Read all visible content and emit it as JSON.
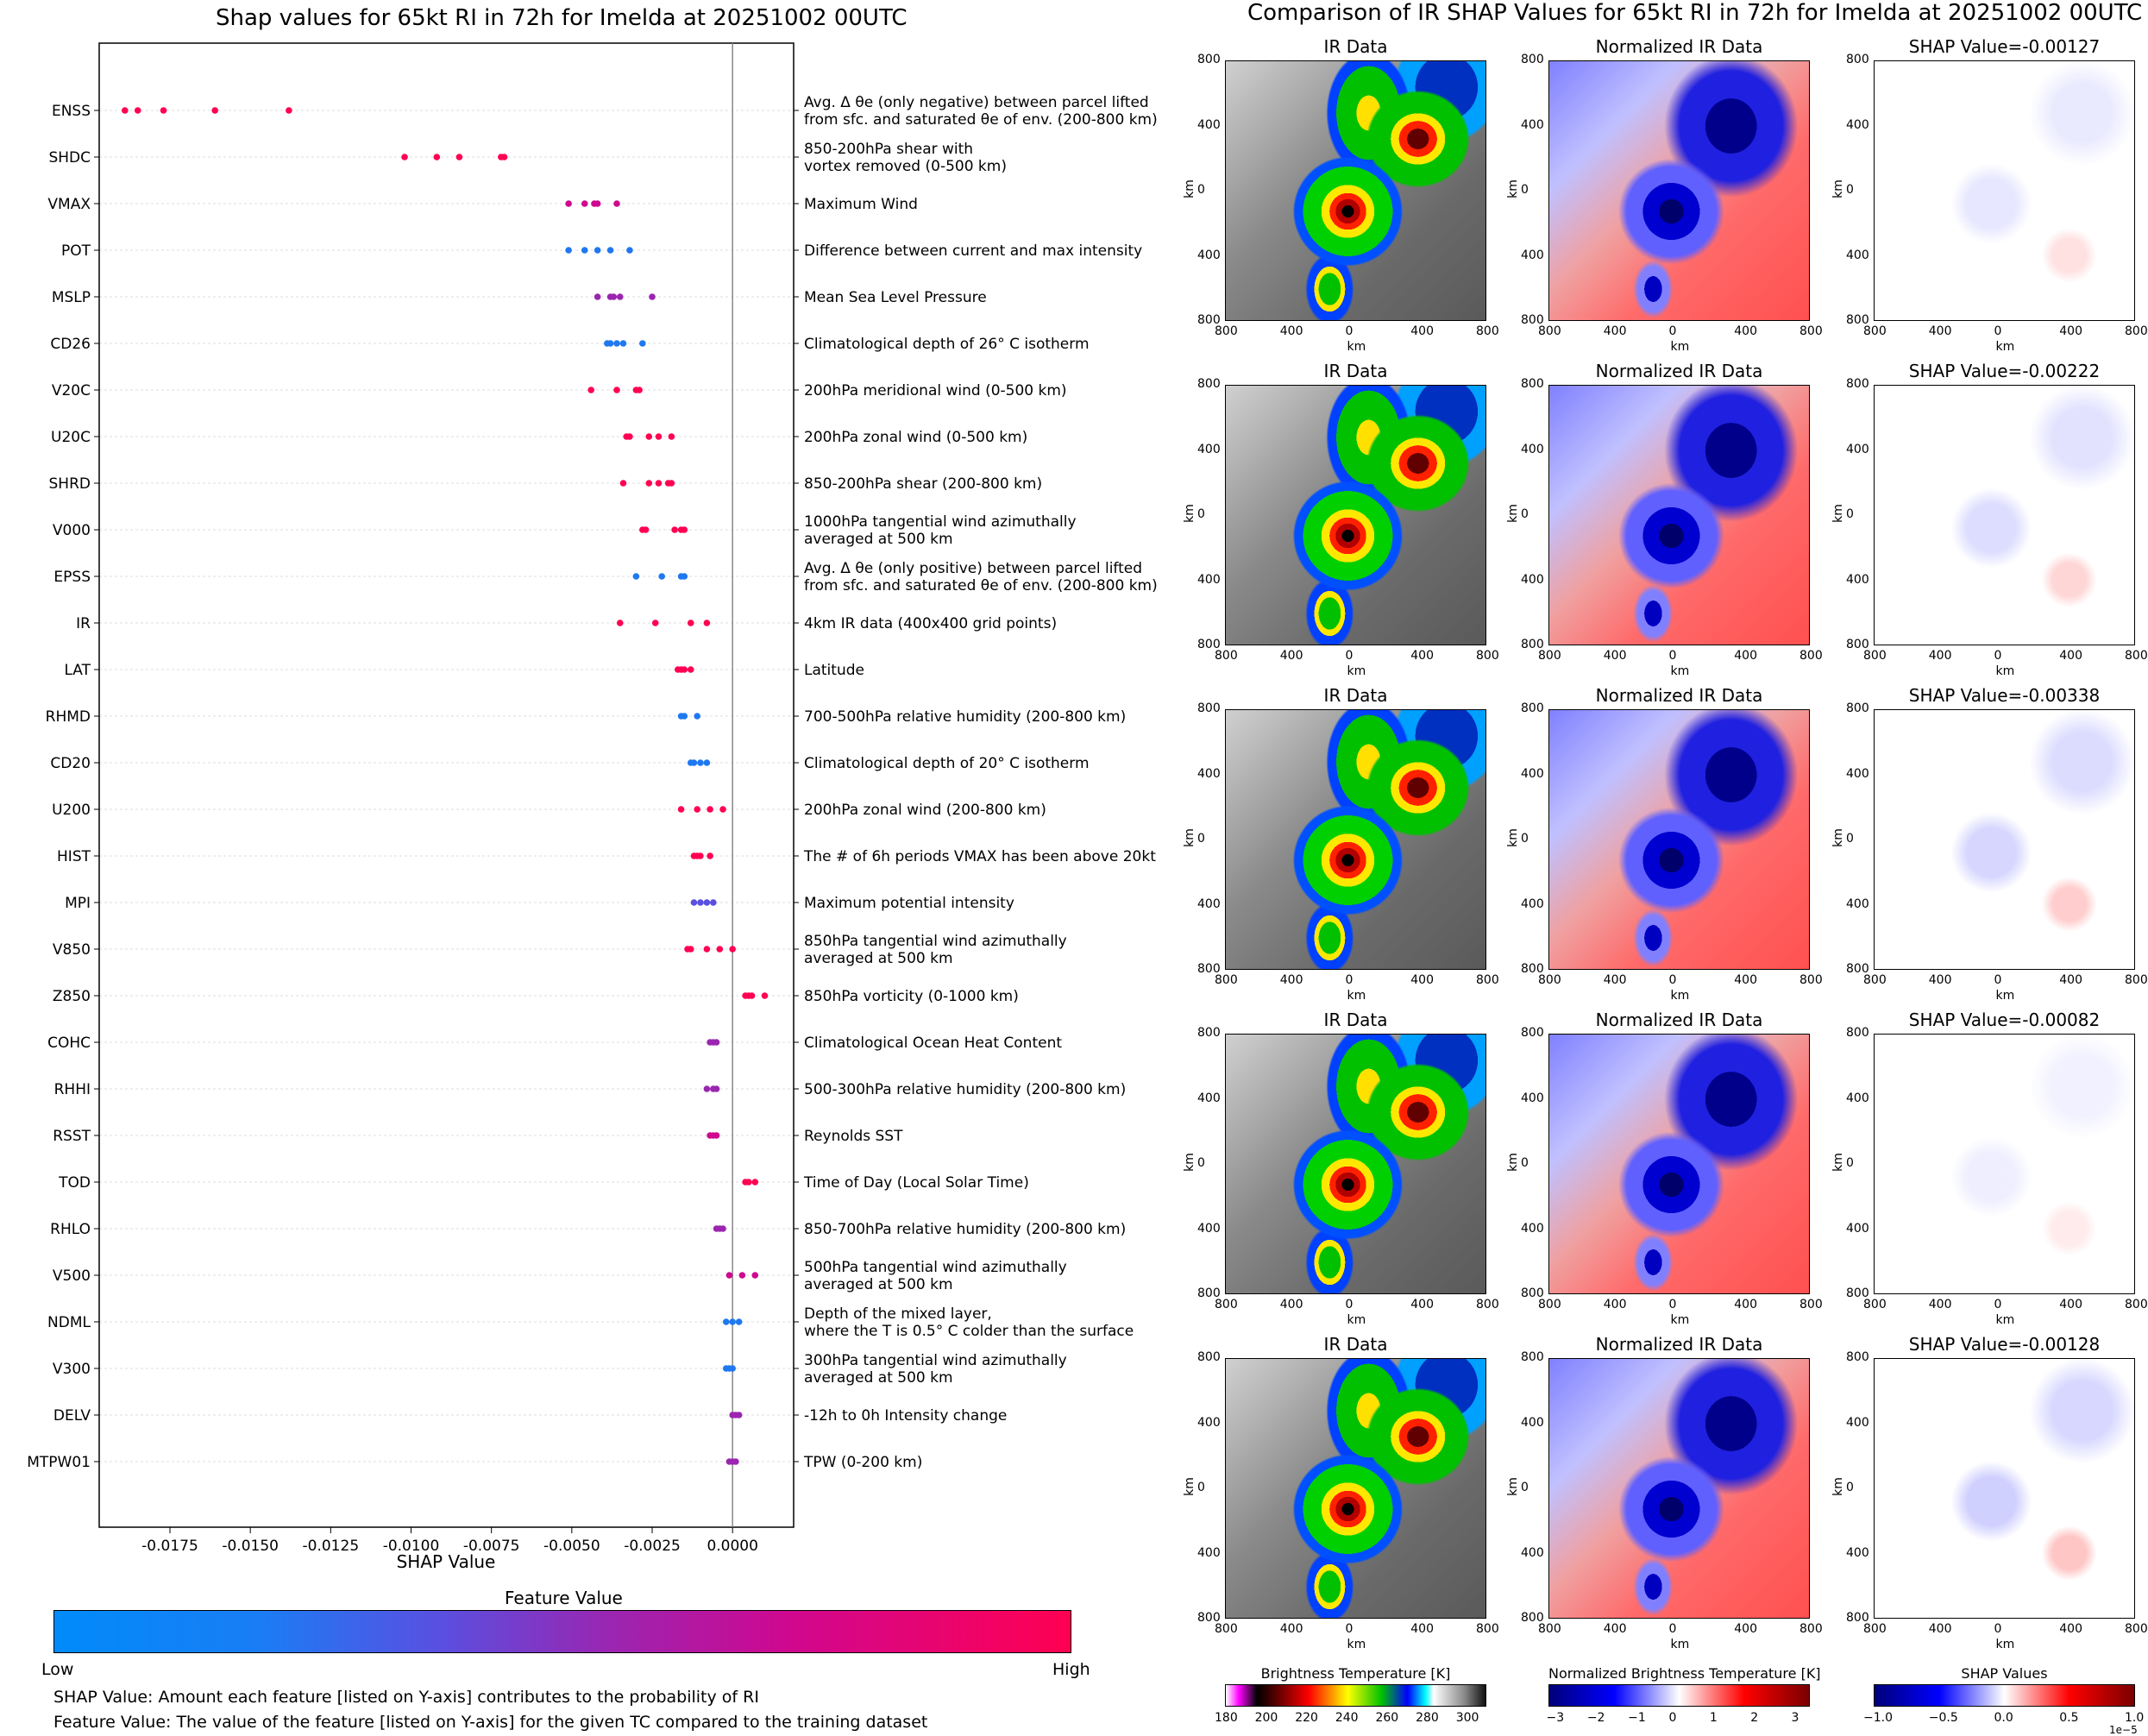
{
  "left_title": "Shap values for 65kt RI in 72h for Imelda at 20251002 00UTC",
  "right_title": "Comparison of IR SHAP Values for 65kt RI in 72h for Imelda at 20251002 00UTC",
  "colorbar": {
    "title": "Feature Value",
    "low": "Low",
    "high": "High",
    "colors": [
      "#008bfa",
      "#5a4fe0",
      "#9b25b0",
      "#cf0890",
      "#ff0052"
    ]
  },
  "notes": {
    "shap": "SHAP Value: Amount each feature [listed on Y-axis] contributes to the probability of RI",
    "feature": "Feature Value: The value of the feature [listed on Y-axis] for the given TC compared to the training dataset"
  },
  "chart_data": [
    {
      "type": "scatter",
      "title": "Shap values for 65kt RI in 72h for Imelda at 20251002 00UTC",
      "xlabel": "SHAP Value",
      "xlim": [
        -0.0197,
        0.0019
      ],
      "xticks": [
        "-0.0175",
        "-0.0150",
        "-0.0125",
        "-0.0100",
        "-0.0075",
        "-0.0050",
        "-0.0025",
        "0.0000"
      ],
      "xtick_values": [
        -0.0175,
        -0.015,
        -0.0125,
        -0.01,
        -0.0075,
        -0.005,
        -0.0025,
        0.0
      ],
      "features": [
        {
          "name": "ENSS",
          "desc": [
            "Avg. Δ θe (only negative) between parcel lifted",
            "from sfc. and saturated θe of env. (200-800 km)"
          ],
          "color": "#ff0052",
          "x": [
            -0.0189,
            -0.0185,
            -0.0177,
            -0.0161,
            -0.0138
          ]
        },
        {
          "name": "SHDC",
          "desc": [
            "850-200hPa shear with",
            "vortex removed (0-500 km)"
          ],
          "color": "#ff0052",
          "x": [
            -0.0102,
            -0.0092,
            -0.0085,
            -0.0072,
            -0.0071
          ]
        },
        {
          "name": "VMAX",
          "desc": [
            "Maximum Wind"
          ],
          "color": "#cf0890",
          "x": [
            -0.0051,
            -0.0046,
            -0.0043,
            -0.0042,
            -0.0036
          ]
        },
        {
          "name": "POT",
          "desc": [
            "Difference between current and max intensity"
          ],
          "color": "#1f78f0",
          "x": [
            -0.0051,
            -0.0046,
            -0.0042,
            -0.0038,
            -0.0032
          ]
        },
        {
          "name": "MSLP",
          "desc": [
            "Mean Sea Level Pressure"
          ],
          "color": "#9b25b0",
          "x": [
            -0.0042,
            -0.0038,
            -0.0037,
            -0.0035,
            -0.0025
          ]
        },
        {
          "name": "CD26",
          "desc": [
            "Climatological depth of 26° C isotherm"
          ],
          "color": "#1f78f0",
          "x": [
            -0.0039,
            -0.0038,
            -0.0036,
            -0.0034,
            -0.0028
          ]
        },
        {
          "name": "V20C",
          "desc": [
            "200hPa meridional wind (0-500 km)"
          ],
          "color": "#ff0052",
          "x": [
            -0.0044,
            -0.0036,
            -0.003,
            -0.0029
          ]
        },
        {
          "name": "U20C",
          "desc": [
            "200hPa zonal wind (0-500 km)"
          ],
          "color": "#ff0052",
          "x": [
            -0.0033,
            -0.0032,
            -0.0026,
            -0.0023,
            -0.0019
          ]
        },
        {
          "name": "SHRD",
          "desc": [
            "850-200hPa shear (200-800 km)"
          ],
          "color": "#ff0052",
          "x": [
            -0.0034,
            -0.0026,
            -0.0023,
            -0.002,
            -0.0019
          ]
        },
        {
          "name": "V000",
          "desc": [
            "1000hPa tangential wind azimuthally",
            "averaged at 500 km"
          ],
          "color": "#ff0052",
          "x": [
            -0.0028,
            -0.0027,
            -0.0018,
            -0.0016,
            -0.0015
          ]
        },
        {
          "name": "EPSS",
          "desc": [
            "Avg. Δ θe (only positive) between parcel lifted",
            "from sfc. and saturated θe of env. (200-800 km)"
          ],
          "color": "#1f78f0",
          "x": [
            -0.003,
            -0.0022,
            -0.0016,
            -0.0015
          ]
        },
        {
          "name": "IR",
          "desc": [
            "4km IR data (400x400 grid points)"
          ],
          "color": "#ff0052",
          "x": [
            -0.0035,
            -0.0024,
            -0.0013,
            -0.0008
          ]
        },
        {
          "name": "LAT",
          "desc": [
            "Latitude"
          ],
          "color": "#ff0052",
          "x": [
            -0.0017,
            -0.0016,
            -0.0015,
            -0.0013
          ]
        },
        {
          "name": "RHMD",
          "desc": [
            "700-500hPa relative humidity (200-800 km)"
          ],
          "color": "#1f78f0",
          "x": [
            -0.0016,
            -0.0015,
            -0.0011
          ]
        },
        {
          "name": "CD20",
          "desc": [
            "Climatological depth of 20° C isotherm"
          ],
          "color": "#1f78f0",
          "x": [
            -0.0013,
            -0.0012,
            -0.001,
            -0.0008
          ]
        },
        {
          "name": "U200",
          "desc": [
            "200hPa zonal wind (200-800 km)"
          ],
          "color": "#ff0052",
          "x": [
            -0.0016,
            -0.0011,
            -0.0007,
            -0.0003
          ]
        },
        {
          "name": "HIST",
          "desc": [
            "The # of 6h periods VMAX has been above 20kt"
          ],
          "color": "#ff0052",
          "x": [
            -0.0012,
            -0.0011,
            -0.001,
            -0.0007
          ]
        },
        {
          "name": "MPI",
          "desc": [
            "Maximum potential intensity"
          ],
          "color": "#5a4fe0",
          "x": [
            -0.0012,
            -0.001,
            -0.0008,
            -0.0006
          ]
        },
        {
          "name": "V850",
          "desc": [
            "850hPa tangential wind azimuthally",
            "averaged at 500 km"
          ],
          "color": "#ff0052",
          "x": [
            -0.0014,
            -0.0013,
            -0.0008,
            -0.0004,
            0.0
          ]
        },
        {
          "name": "Z850",
          "desc": [
            "850hPa vorticity (0-1000 km)"
          ],
          "color": "#ff0052",
          "x": [
            0.0004,
            0.0005,
            0.0006,
            0.001
          ]
        },
        {
          "name": "COHC",
          "desc": [
            "Climatological Ocean Heat Content"
          ],
          "color": "#9b25b0",
          "x": [
            -0.0007,
            -0.0006,
            -0.0005
          ]
        },
        {
          "name": "RHHI",
          "desc": [
            "500-300hPa relative humidity (200-800 km)"
          ],
          "color": "#9b25b0",
          "x": [
            -0.0008,
            -0.0006,
            -0.0005
          ]
        },
        {
          "name": "RSST",
          "desc": [
            "Reynolds SST"
          ],
          "color": "#cf0890",
          "x": [
            -0.0007,
            -0.0006,
            -0.0005
          ]
        },
        {
          "name": "TOD",
          "desc": [
            "Time of Day (Local Solar Time)"
          ],
          "color": "#ff0052",
          "x": [
            0.0004,
            0.0005,
            0.0007
          ]
        },
        {
          "name": "RHLO",
          "desc": [
            "850-700hPa relative humidity (200-800 km)"
          ],
          "color": "#9b25b0",
          "x": [
            -0.0005,
            -0.0004,
            -0.0003
          ]
        },
        {
          "name": "V500",
          "desc": [
            "500hPa tangential wind azimuthally",
            "averaged at 500 km"
          ],
          "color": "#cf0890",
          "x": [
            -0.0001,
            0.0003,
            0.0007
          ]
        },
        {
          "name": "NDML",
          "desc": [
            "Depth of the mixed layer,",
            "where the T is 0.5° C colder than the surface"
          ],
          "color": "#1f78f0",
          "x": [
            -0.0002,
            0.0,
            0.0002
          ]
        },
        {
          "name": "V300",
          "desc": [
            "300hPa tangential wind azimuthally",
            "averaged at 500 km"
          ],
          "color": "#1f78f0",
          "x": [
            -0.0002,
            -0.0001,
            0.0
          ]
        },
        {
          "name": "DELV",
          "desc": [
            "-12h to 0h Intensity change"
          ],
          "color": "#9b25b0",
          "x": [
            0.0,
            0.0001,
            0.0002
          ]
        },
        {
          "name": "MTPW01",
          "desc": [
            "TPW (0-200 km)"
          ],
          "color": "#9b25b0",
          "x": [
            -0.0001,
            0.0,
            0.0001
          ]
        }
      ]
    },
    {
      "type": "heatmap",
      "title": "Comparison of IR SHAP Values for 65kt RI in 72h for Imelda at 20251002 00UTC",
      "column_titles": [
        "IR Data",
        "Normalized IR Data"
      ],
      "shap_titles": [
        "SHAP Value=-0.00127",
        "SHAP Value=-0.00222",
        "SHAP Value=-0.00338",
        "SHAP Value=-0.00082",
        "SHAP Value=-0.00128"
      ],
      "xlabel": "km",
      "ylabel": "km",
      "ticks": [
        "800",
        "400",
        "0",
        "400",
        "800"
      ],
      "colorbars": [
        {
          "title": "Brightness Temperature [K]",
          "ticks": [
            "180",
            "200",
            "220",
            "240",
            "260",
            "280",
            "300"
          ],
          "range": [
            180,
            310
          ]
        },
        {
          "title": "Normalized Brightness Temperature [K]",
          "ticks": [
            "−3",
            "−2",
            "−1",
            "0",
            "1",
            "2",
            "3"
          ],
          "range": [
            -3.2,
            3.2
          ]
        },
        {
          "title": "SHAP Values",
          "ticks": [
            "−1.0",
            "−0.5",
            "0.0",
            "0.5",
            "1.0"
          ],
          "range": [
            -1,
            1
          ],
          "exponent": "1e−5"
        }
      ]
    }
  ]
}
